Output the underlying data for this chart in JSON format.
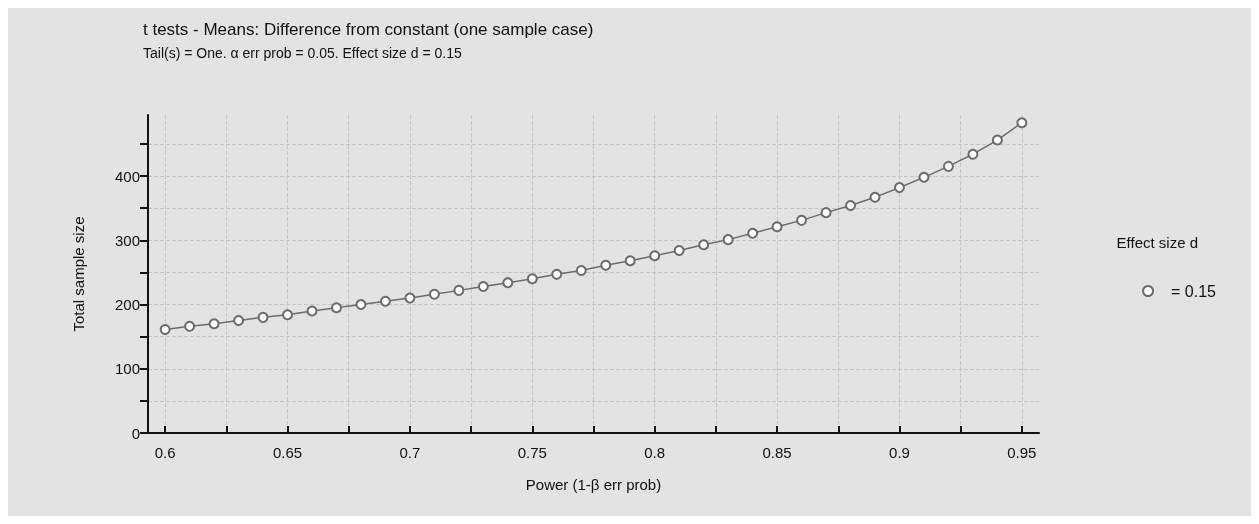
{
  "chart_data": {
    "type": "line",
    "title": "t tests - Means: Difference from constant (one sample case)",
    "subtitle": "Tail(s) = One. α err prob = 0.05. Effect size d = 0.15",
    "xlabel": "Power (1-β err prob)",
    "ylabel": "Total sample size",
    "legend_title": "Effect size d",
    "x": [
      0.6,
      0.61,
      0.62,
      0.63,
      0.64,
      0.65,
      0.66,
      0.67,
      0.68,
      0.69,
      0.7,
      0.71,
      0.72,
      0.73,
      0.74,
      0.75,
      0.76,
      0.77,
      0.78,
      0.79,
      0.8,
      0.81,
      0.82,
      0.83,
      0.84,
      0.85,
      0.86,
      0.87,
      0.88,
      0.89,
      0.9,
      0.91,
      0.92,
      0.93,
      0.94,
      0.95
    ],
    "series": [
      {
        "name": "= 0.15",
        "color": "#6b6b6b",
        "values": [
          161,
          166,
          170,
          175,
          180,
          184,
          190,
          195,
          200,
          205,
          210,
          216,
          222,
          228,
          234,
          240,
          247,
          253,
          261,
          268,
          276,
          284,
          293,
          301,
          311,
          321,
          331,
          343,
          354,
          367,
          382,
          398,
          415,
          434,
          456,
          483
        ]
      }
    ],
    "xlim": [
      0.593,
      0.957
    ],
    "xticks": [
      0.6,
      {
        "value": 0.625,
        "label": null
      },
      0.65,
      {
        "value": 0.675,
        "label": null
      },
      0.7,
      {
        "value": 0.725,
        "label": null
      },
      0.75,
      {
        "value": 0.775,
        "label": null
      },
      0.8,
      {
        "value": 0.825,
        "label": null
      },
      0.85,
      {
        "value": 0.875,
        "label": null
      },
      0.9,
      {
        "value": 0.925,
        "label": null
      },
      0.95
    ],
    "ylim": [
      0,
      495
    ],
    "yticks": [
      0,
      {
        "value": 50,
        "label": null
      },
      100,
      {
        "value": 150,
        "label": null
      },
      200,
      {
        "value": 250,
        "label": null
      },
      300,
      {
        "value": 350,
        "label": null
      },
      400,
      {
        "value": 450,
        "label": null
      }
    ],
    "grid": true,
    "legend": "right",
    "marker": "circle",
    "line_style": "solid"
  }
}
